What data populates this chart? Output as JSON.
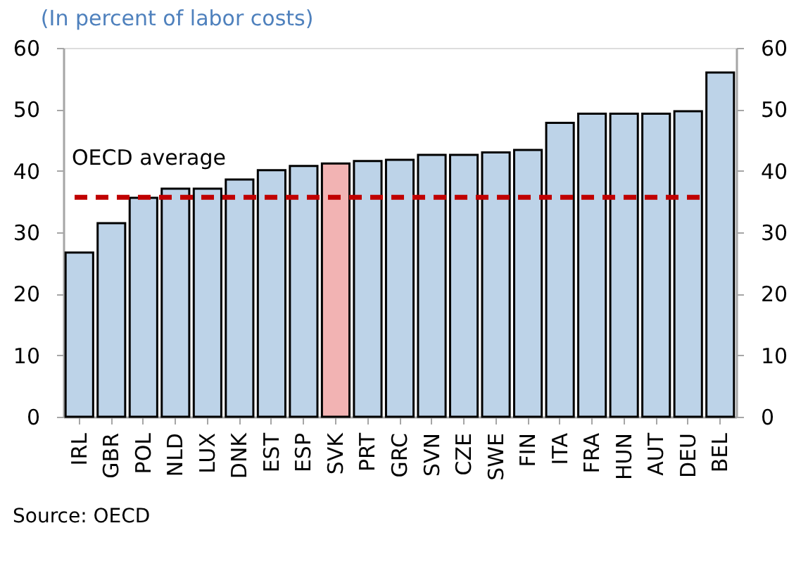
{
  "chart_data": {
    "type": "bar",
    "subtitle": "(In percent of labor costs)",
    "categories": [
      "IRL",
      "GBR",
      "POL",
      "NLD",
      "LUX",
      "DNK",
      "EST",
      "ESP",
      "SVK",
      "PRT",
      "GRC",
      "SVN",
      "CZE",
      "SWE",
      "FIN",
      "ITA",
      "FRA",
      "HUN",
      "AUT",
      "DEU",
      "BEL"
    ],
    "values": [
      26.7,
      31.5,
      35.6,
      37.1,
      37.1,
      38.6,
      40.1,
      40.8,
      41.2,
      41.6,
      41.8,
      42.6,
      42.6,
      43.0,
      43.4,
      47.8,
      49.3,
      49.3,
      49.3,
      49.7,
      56.0
    ],
    "colors": [
      "#bdd3e8",
      "#bdd3e8",
      "#bdd3e8",
      "#bdd3e8",
      "#bdd3e8",
      "#bdd3e8",
      "#bdd3e8",
      "#bdd3e8",
      "#f2b3b3",
      "#bdd3e8",
      "#bdd3e8",
      "#bdd3e8",
      "#bdd3e8",
      "#bdd3e8",
      "#bdd3e8",
      "#bdd3e8",
      "#bdd3e8",
      "#bdd3e8",
      "#bdd3e8",
      "#bdd3e8",
      "#bdd3e8"
    ],
    "ylim": [
      0,
      60
    ],
    "yticks": [
      0,
      10,
      20,
      30,
      40,
      50,
      60
    ],
    "y2lim": [
      0,
      60
    ],
    "y2ticks": [
      0,
      10,
      20,
      30,
      40,
      50,
      60
    ],
    "ref_lines": [
      {
        "axis": "y",
        "value": 35.7,
        "label": "OECD average",
        "color": "#c00000",
        "line_style": "dashed"
      }
    ],
    "annotations": [
      "Source: OECD"
    ],
    "tick_labels": true
  }
}
